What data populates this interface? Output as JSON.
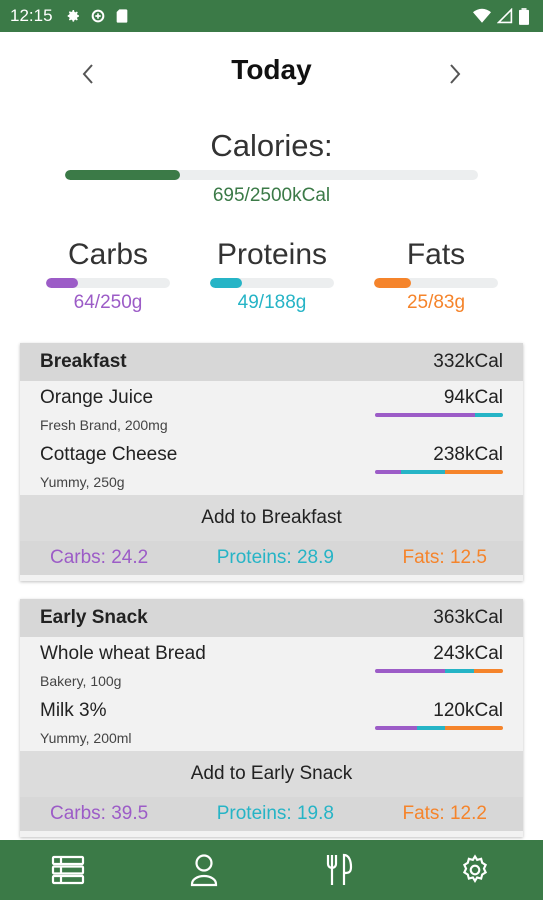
{
  "status_bar": {
    "time": "12:15",
    "left_icons": [
      "gear-icon",
      "data-saver-icon",
      "sd-card-icon"
    ],
    "right_icons": [
      "wifi-icon",
      "signal-icon",
      "battery-icon"
    ]
  },
  "header": {
    "title": "Today",
    "prev_icon": "chevron-left-icon",
    "next_icon": "chevron-right-icon"
  },
  "calories": {
    "label": "Calories:",
    "value": "695/2500kCal",
    "consumed": 695,
    "goal": 2500,
    "color": "#3b7a47"
  },
  "macros": {
    "carbs": {
      "name": "Carbs",
      "value": "64/250g",
      "consumed": 64,
      "goal": 250,
      "color": "#9c5cc7"
    },
    "proteins": {
      "name": "Proteins",
      "value": "49/188g",
      "consumed": 49,
      "goal": 188,
      "color": "#26b4c6"
    },
    "fats": {
      "name": "Fats",
      "value": "25/83g",
      "consumed": 25,
      "goal": 83,
      "color": "#f5842b"
    }
  },
  "meals": [
    {
      "name": "Breakfast",
      "kcal": "332kCal",
      "foods": [
        {
          "name": "Orange Juice",
          "desc": "Fresh Brand, 200mg",
          "kcal": "94kCal",
          "split": [
            0.78,
            0.22,
            0
          ]
        },
        {
          "name": "Cottage Cheese",
          "desc": "Yummy, 250g",
          "kcal": "238kCal",
          "split": [
            0.2,
            0.35,
            0.45
          ]
        }
      ],
      "add_label": "Add to Breakfast",
      "totals": {
        "carbs": "Carbs: 24.2",
        "proteins": "Proteins: 28.9",
        "fats": "Fats: 12.5"
      }
    },
    {
      "name": "Early Snack",
      "kcal": "363kCal",
      "foods": [
        {
          "name": "Whole wheat Bread",
          "desc": "Bakery, 100g",
          "kcal": "243kCal",
          "split": [
            0.55,
            0.22,
            0.23
          ]
        },
        {
          "name": "Milk 3%",
          "desc": "Yummy, 200ml",
          "kcal": "120kCal",
          "split": [
            0.33,
            0.22,
            0.45
          ]
        }
      ],
      "add_label": "Add to Early Snack",
      "totals": {
        "carbs": "Carbs: 39.5",
        "proteins": "Proteins: 19.8",
        "fats": "Fats: 12.2"
      }
    }
  ],
  "bottom_nav": [
    "meals-list-icon",
    "profile-icon",
    "food-icon",
    "settings-icon"
  ]
}
